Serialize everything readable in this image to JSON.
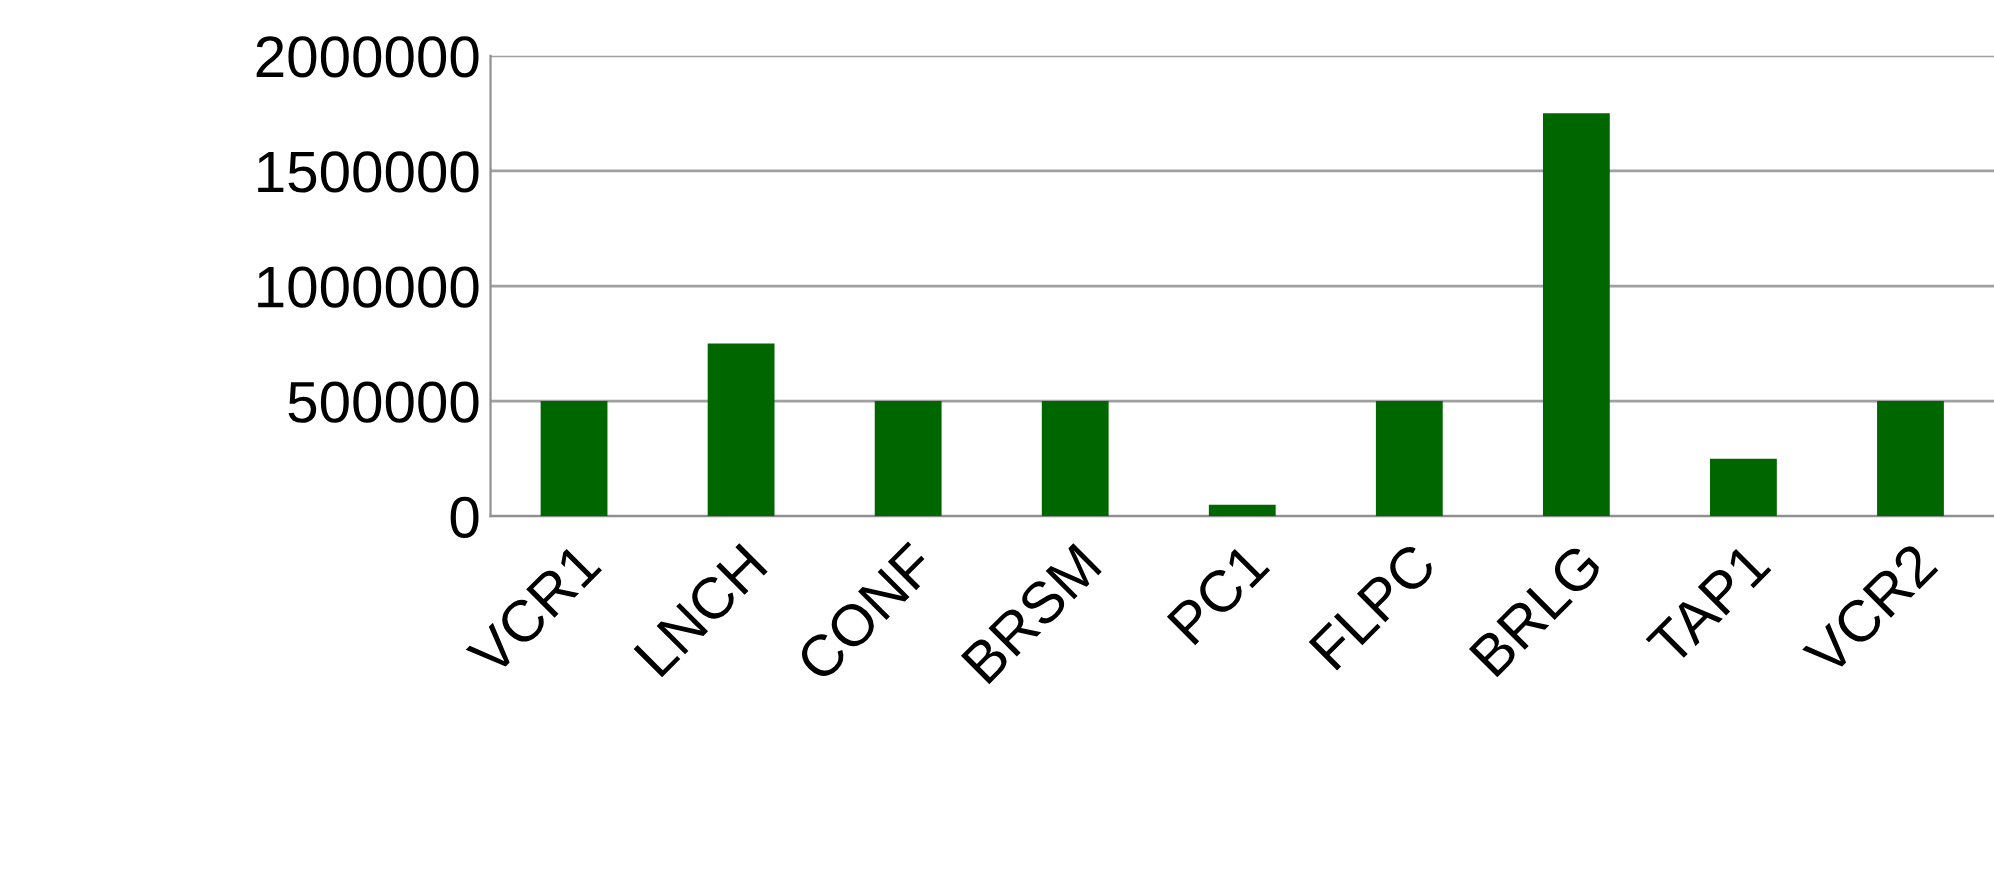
{
  "chart_data": {
    "type": "bar",
    "categories": [
      "VCR1",
      "LNCH",
      "CONF",
      "BRSM",
      "PC1",
      "FLPC",
      "BRLG",
      "TAP1",
      "VCR2"
    ],
    "values": [
      500000,
      750000,
      500000,
      500000,
      50000,
      500000,
      1750000,
      250000,
      500000
    ],
    "color": "#006600",
    "ylim": [
      0,
      2000000
    ],
    "yticks": [
      0,
      500000,
      1000000,
      1500000,
      2000000
    ],
    "grid": "y",
    "legend": false
  }
}
